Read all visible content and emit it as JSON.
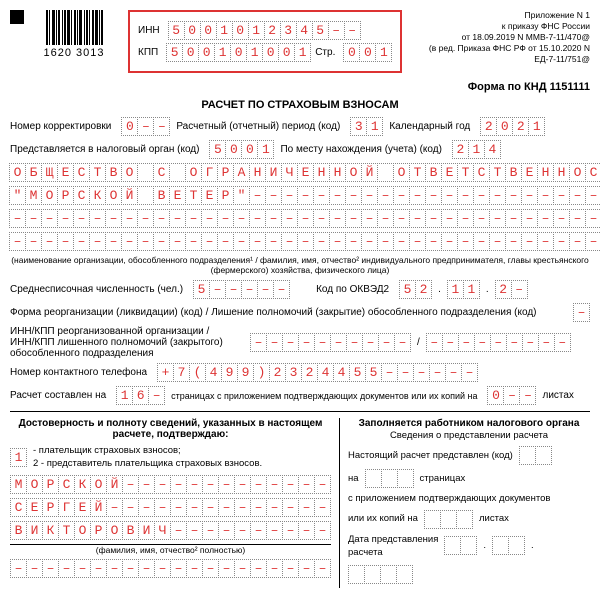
{
  "barcode_text": "1620 3013",
  "inn_label": "ИНН",
  "inn": [
    "5",
    "0",
    "0",
    "1",
    "0",
    "1",
    "2",
    "3",
    "4",
    "5",
    "–",
    "–"
  ],
  "kpp_label": "КПП",
  "kpp": [
    "5",
    "0",
    "0",
    "1",
    "0",
    "1",
    "0",
    "0",
    "1"
  ],
  "str_label": "Стр.",
  "str": [
    "0",
    "0",
    "1"
  ],
  "legal": "Приложение N 1\nк приказу ФНС России\nот 18.09.2019 N ММВ-7-11/470@\n(в ред. Приказа ФНС РФ от 15.10.2020 N\nЕД-7-11/751@",
  "form_code": "Форма по КНД 1151111",
  "title": "РАСЧЕТ ПО СТРАХОВЫМ ВЗНОСАМ",
  "corr_label": "Номер корректировки",
  "corr": [
    "0",
    "–",
    "–"
  ],
  "period_label": "Расчетный (отчетный) период (код)",
  "period": [
    "3",
    "1"
  ],
  "year_label": "Календарный год",
  "year": [
    "2",
    "0",
    "2",
    "1"
  ],
  "tax_org_label": "Представляется в налоговый орган (код)",
  "tax_org": [
    "5",
    "0",
    "0",
    "1"
  ],
  "location_label": "По месту нахождения (учета) (код)",
  "location": [
    "2",
    "1",
    "4"
  ],
  "org_line1": [
    "О",
    "Б",
    "Щ",
    "Е",
    "С",
    "Т",
    "В",
    "О",
    "",
    "С",
    "",
    "О",
    "Г",
    "Р",
    "А",
    "Н",
    "И",
    "Ч",
    "Е",
    "Н",
    "Н",
    "О",
    "Й",
    "",
    "О",
    "Т",
    "В",
    "Е",
    "Т",
    "С",
    "Т",
    "В",
    "Е",
    "Н",
    "Н",
    "О",
    "С",
    "Т",
    "Ь",
    "Ю"
  ],
  "org_line2": [
    "\"",
    "М",
    "О",
    "Р",
    "С",
    "К",
    "О",
    "Й",
    "",
    "В",
    "Е",
    "Т",
    "Е",
    "Р",
    "\"",
    "–",
    "–",
    "–",
    "–",
    "–",
    "–",
    "–",
    "–",
    "–",
    "–",
    "–",
    "–",
    "–",
    "–",
    "–",
    "–",
    "–",
    "–",
    "–",
    "–",
    "–",
    "–",
    "–",
    "–",
    "–"
  ],
  "org_line3_fill": "–",
  "org_note": "(наименование организации, обособленного подразделения¹ / фамилия, имя, отчество² индивидуального предпринимателя, главы крестьянского (фермерского) хозяйства, физического лица)",
  "avg_label": "Среднесписочная численность (чел.)",
  "avg": [
    "5",
    "–",
    "–",
    "–",
    "–",
    "–"
  ],
  "okved_label": "Код по ОКВЭД2",
  "okved1": [
    "5",
    "2"
  ],
  "okved2": [
    "1",
    "1"
  ],
  "okved3": [
    "2",
    "–"
  ],
  "reorg_label": "Форма реорганизации (ликвидации) (код) / Лишение полномочий (закрытие) обособленного подразделения (код)",
  "reorg": [
    "–"
  ],
  "inn_kpp_reorg_label": "ИНН/КПП реорганизованной организации /\nИНН/КПП лишенного полномочий (закрытого)\nобособленного подразделения",
  "reorg_inn_fill": "–",
  "phone_label": "Номер контактного телефона",
  "phone": [
    "+",
    "7",
    "(",
    "4",
    "9",
    "9",
    ")",
    "2",
    "3",
    "2",
    "4",
    "4",
    "5",
    "5",
    "–",
    "–",
    "–",
    "–",
    "–",
    "–"
  ],
  "pages_label1": "Расчет составлен на",
  "pages": [
    "1",
    "6",
    "–"
  ],
  "pages_label2": "страницах с приложением подтверждающих документов или их копий на",
  "pages_att": [
    "0",
    "–",
    "–"
  ],
  "pages_label3": "листах",
  "left_title": "Достоверность и полноту сведений, указанных в настоящем расчете, подтверждаю:",
  "confirm": [
    "1"
  ],
  "confirm_text": "- плательщик страховых взносов;\n2 - представитель плательщика страховых взносов.",
  "name1": [
    "М",
    "О",
    "Р",
    "С",
    "К",
    "О",
    "Й",
    "–",
    "–",
    "–",
    "–",
    "–",
    "–",
    "–",
    "–",
    "–",
    "–",
    "–",
    "–",
    "–"
  ],
  "name2": [
    "С",
    "Е",
    "Р",
    "Г",
    "Е",
    "Й",
    "–",
    "–",
    "–",
    "–",
    "–",
    "–",
    "–",
    "–",
    "–",
    "–",
    "–",
    "–",
    "–",
    "–"
  ],
  "name3": [
    "В",
    "И",
    "К",
    "Т",
    "О",
    "Р",
    "О",
    "В",
    "И",
    "Ч",
    "–",
    "–",
    "–",
    "–",
    "–",
    "–",
    "–",
    "–",
    "–",
    "–"
  ],
  "name_note": "(фамилия, имя, отчество² полностью)",
  "right_title": "Заполняется работником налогового органа",
  "right_sub": "Сведения о представлении расчета",
  "r1a": "Настоящий расчет представлен (код)",
  "r1b": "на",
  "r1c": "страницах",
  "r2": "с приложением подтверждающих документов",
  "r3a": "или их копий на",
  "r3b": "листах",
  "r4": "Дата представления\nрасчета"
}
